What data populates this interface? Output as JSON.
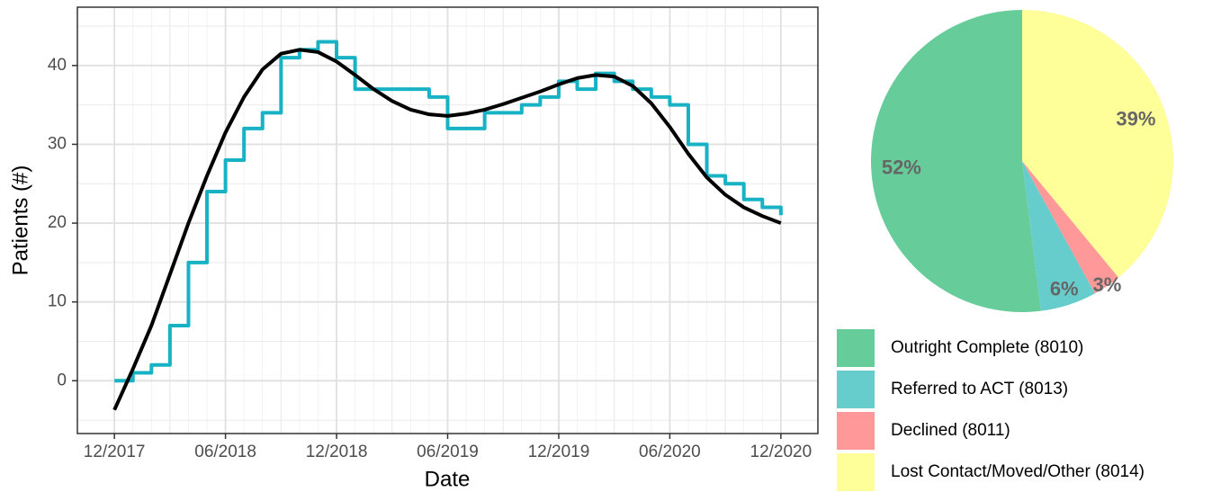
{
  "chart_data": [
    {
      "type": "line",
      "x_label": "Date",
      "y_label": "Patients (#)",
      "x": [
        "2017-12",
        "2018-01",
        "2018-02",
        "2018-03",
        "2018-04",
        "2018-05",
        "2018-06",
        "2018-07",
        "2018-08",
        "2018-09",
        "2018-10",
        "2018-11",
        "2018-12",
        "2019-01",
        "2019-02",
        "2019-03",
        "2019-04",
        "2019-05",
        "2019-06",
        "2019-07",
        "2019-08",
        "2019-09",
        "2019-10",
        "2019-11",
        "2019-12",
        "2020-01",
        "2020-02",
        "2020-03",
        "2020-04",
        "2020-05",
        "2020-06",
        "2020-07",
        "2020-08",
        "2020-09",
        "2020-10",
        "2020-11",
        "2020-12"
      ],
      "series": [
        {
          "color": "#17b3c4",
          "step": true,
          "values": [
            0,
            1,
            2,
            7,
            15,
            24,
            28,
            32,
            34,
            41,
            42,
            43,
            41,
            37,
            37,
            37,
            37,
            36,
            32,
            32,
            34,
            34,
            35,
            36,
            38,
            37,
            39,
            38,
            37,
            36,
            35,
            30,
            26,
            25,
            23,
            22,
            21
          ]
        },
        {
          "color": "#000000",
          "step": false,
          "values": [
            -3.7,
            1.5,
            7,
            13.5,
            20,
            26,
            31.5,
            36,
            39.5,
            41.5,
            42,
            41.7,
            40.5,
            38.8,
            37,
            35.5,
            34.4,
            33.8,
            33.6,
            33.9,
            34.4,
            35.1,
            35.9,
            36.7,
            37.6,
            38.4,
            38.8,
            38.6,
            37.4,
            35.2,
            32.2,
            28.8,
            25.8,
            23.6,
            22,
            20.9,
            20
          ]
        }
      ],
      "xlim": [
        "2017-10",
        "2021-02"
      ],
      "xticks": [
        {
          "value": "2017-12",
          "label": "12/2017"
        },
        {
          "value": "2018-06",
          "label": "06/2018"
        },
        {
          "value": "2018-12",
          "label": "12/2018"
        },
        {
          "value": "2019-06",
          "label": "06/2019"
        },
        {
          "value": "2019-12",
          "label": "12/2019"
        },
        {
          "value": "2020-06",
          "label": "06/2020"
        },
        {
          "value": "2020-12",
          "label": "12/2020"
        }
      ],
      "ylim": [
        -6.7,
        47.4
      ],
      "yticks": [
        0,
        10,
        20,
        30,
        40
      ],
      "grid": true
    },
    {
      "type": "pie",
      "categories": [
        "Outright Complete (8010)",
        "Referred to ACT (8013)",
        "Declined (8011)",
        "Lost Contact/Moved/Other (8014)"
      ],
      "values": [
        52,
        6,
        3,
        39
      ],
      "value_labels": [
        "52%",
        "6%",
        "3%",
        "39%"
      ],
      "colors": [
        "#66cc99",
        "#66cccc",
        "#ff9999",
        "#ffff99"
      ]
    }
  ]
}
